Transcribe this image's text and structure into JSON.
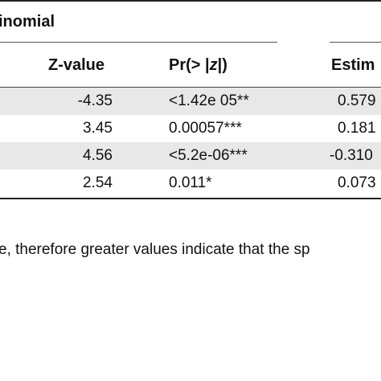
{
  "section": {
    "title": "inomial"
  },
  "headers": {
    "z_value": "Z-value",
    "pr_prefix": "Pr(> |",
    "pr_var": "z",
    "pr_suffix": "|)",
    "estimate": "Estim"
  },
  "rows": [
    {
      "z": "-4.35",
      "pr": "<1.42e 05**",
      "est": "0.579",
      "shaded": true
    },
    {
      "z": "3.45",
      "pr": "0.00057***",
      "est": "0.181",
      "shaded": false
    },
    {
      "z": "4.56",
      "pr": "<5.2e-06***",
      "est": "-0.310",
      "shaded": true
    },
    {
      "z": "2.54",
      "pr": "0.011*",
      "est": "0.073",
      "shaded": false
    }
  ],
  "footnote": "e, therefore greater values indicate that the sp"
}
